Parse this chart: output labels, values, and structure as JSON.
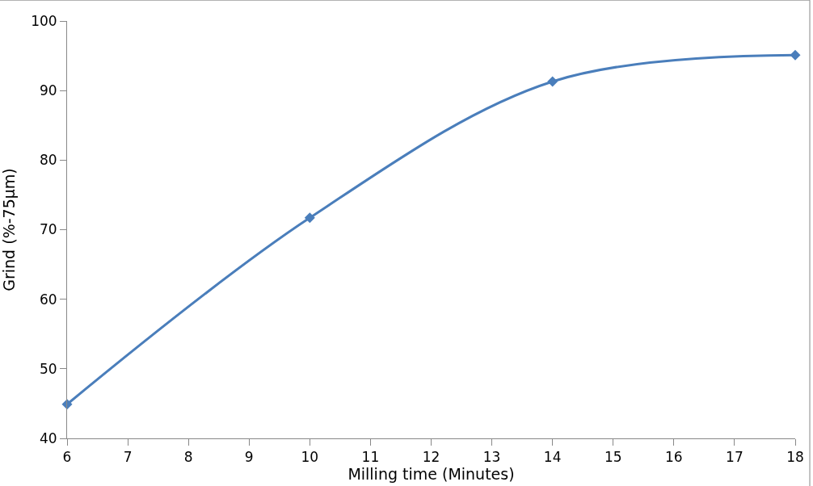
{
  "chart_data": {
    "type": "line",
    "xlabel": "Milling time (Minutes)",
    "ylabel": "Grind (%-75µm)",
    "x": [
      6,
      10,
      14,
      18
    ],
    "series": [
      {
        "color": "#4a7ebb",
        "values": [
          44.9,
          71.7,
          91.3,
          95.1
        ]
      }
    ],
    "xlim": [
      6,
      18
    ],
    "xticks": [
      6,
      7,
      8,
      9,
      10,
      11,
      12,
      13,
      14,
      15,
      16,
      17,
      18
    ],
    "ylim": [
      40,
      100
    ],
    "yticks": [
      40,
      50,
      60,
      70,
      80,
      90,
      100
    ],
    "marker": "diamond",
    "line_style": "solid"
  }
}
